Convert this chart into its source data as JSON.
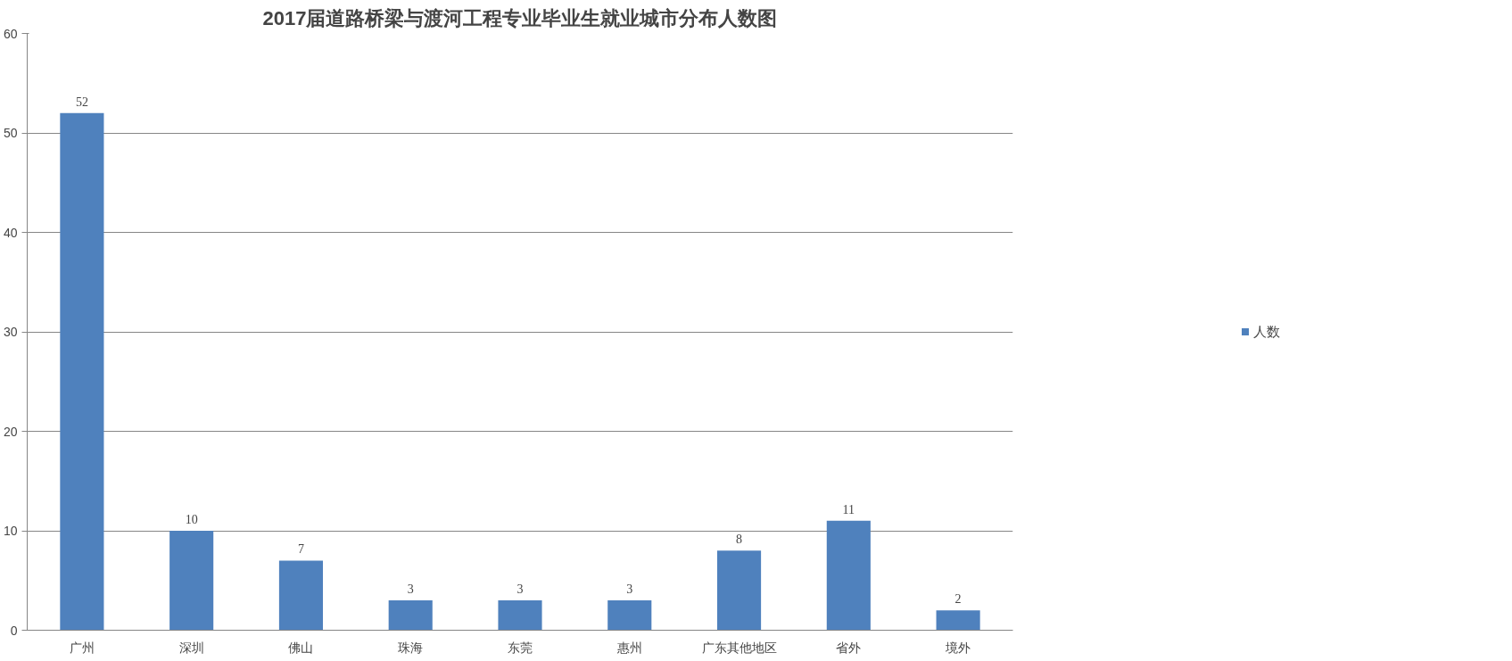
{
  "chart_data": {
    "type": "bar",
    "title": "2017届道路桥梁与渡河工程专业毕业生就业城市分布人数图",
    "categories": [
      "广州",
      "深圳",
      "佛山",
      "珠海",
      "东莞",
      "惠州",
      "广东其他地区",
      "省外",
      "境外"
    ],
    "series": [
      {
        "name": "人数",
        "color": "#4f81bd",
        "values": [
          52,
          10,
          7,
          3,
          3,
          3,
          8,
          11,
          2
        ]
      }
    ],
    "ylim": [
      0,
      60
    ],
    "yticks": [
      0,
      10,
      20,
      30,
      40,
      50,
      60
    ],
    "grid": "y",
    "legend": "right",
    "data_labels": true
  }
}
